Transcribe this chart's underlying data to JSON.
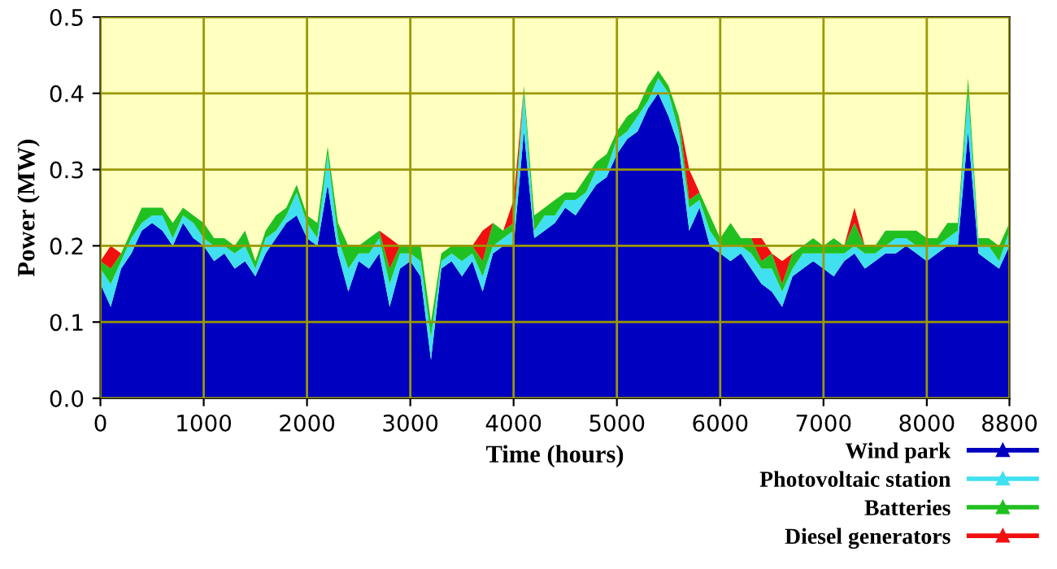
{
  "chart_data": {
    "type": "area",
    "stacked": true,
    "xlabel": "Time (hours)",
    "ylabel": "Power (MW)",
    "xlim": [
      0,
      8800
    ],
    "xticks": [
      0,
      1000,
      2000,
      3000,
      4000,
      5000,
      6000,
      7000,
      8000,
      8800
    ],
    "ylim": [
      0,
      0.5
    ],
    "yticks": [
      {
        "value": 0,
        "label": "0.0"
      },
      0.1,
      0.2,
      0.3,
      0.4,
      0.5
    ],
    "grid": true,
    "legend": "bottom right",
    "x": [
      0,
      100,
      200,
      300,
      400,
      500,
      600,
      700,
      800,
      900,
      1000,
      1100,
      1200,
      1300,
      1400,
      1500,
      1600,
      1700,
      1800,
      1900,
      2000,
      2100,
      2200,
      2300,
      2400,
      2500,
      2600,
      2700,
      2800,
      2900,
      3000,
      3100,
      3200,
      3300,
      3400,
      3500,
      3600,
      3700,
      3800,
      3900,
      4000,
      4100,
      4200,
      4300,
      4400,
      4500,
      4600,
      4700,
      4800,
      4900,
      5000,
      5100,
      5200,
      5300,
      5400,
      5500,
      5600,
      5700,
      5800,
      5900,
      6000,
      6100,
      6200,
      6300,
      6400,
      6500,
      6600,
      6700,
      6800,
      6900,
      7000,
      7100,
      7200,
      7300,
      7400,
      7500,
      7600,
      7700,
      7800,
      7900,
      8000,
      8100,
      8200,
      8300,
      8400,
      8500,
      8600,
      8700,
      8800
    ],
    "series": [
      {
        "name": "Wind park",
        "color": "#0000c0",
        "values": [
          0.15,
          0.12,
          0.17,
          0.19,
          0.22,
          0.23,
          0.22,
          0.2,
          0.23,
          0.21,
          0.2,
          0.18,
          0.19,
          0.17,
          0.18,
          0.16,
          0.19,
          0.21,
          0.23,
          0.24,
          0.21,
          0.2,
          0.28,
          0.19,
          0.14,
          0.18,
          0.17,
          0.19,
          0.12,
          0.17,
          0.18,
          0.16,
          0.05,
          0.17,
          0.18,
          0.16,
          0.18,
          0.14,
          0.19,
          0.2,
          0.2,
          0.35,
          0.21,
          0.22,
          0.23,
          0.25,
          0.24,
          0.26,
          0.28,
          0.29,
          0.32,
          0.34,
          0.35,
          0.38,
          0.4,
          0.37,
          0.33,
          0.22,
          0.25,
          0.2,
          0.19,
          0.18,
          0.19,
          0.17,
          0.15,
          0.14,
          0.12,
          0.16,
          0.17,
          0.18,
          0.17,
          0.16,
          0.18,
          0.19,
          0.17,
          0.18,
          0.19,
          0.19,
          0.2,
          0.19,
          0.18,
          0.19,
          0.2,
          0.2,
          0.35,
          0.19,
          0.18,
          0.17,
          0.2
        ]
      },
      {
        "name": "Photovoltaic station",
        "color": "#40e0f0",
        "values": [
          0.02,
          0.03,
          0.01,
          0.02,
          0.01,
          0.01,
          0.02,
          0.01,
          0.01,
          0.02,
          0.01,
          0.02,
          0.01,
          0.02,
          0.02,
          0.01,
          0.02,
          0.01,
          0.01,
          0.03,
          0.02,
          0.01,
          0.04,
          0.02,
          0.03,
          0.01,
          0.02,
          0.02,
          0.03,
          0.02,
          0.01,
          0.02,
          0.03,
          0.01,
          0.01,
          0.02,
          0.01,
          0.02,
          0.01,
          0.01,
          0.02,
          0.05,
          0.01,
          0.02,
          0.01,
          0.01,
          0.02,
          0.01,
          0.02,
          0.01,
          0.02,
          0.01,
          0.02,
          0.01,
          0.02,
          0.03,
          0.02,
          0.03,
          0.01,
          0.02,
          0.01,
          0.02,
          0.01,
          0.02,
          0.02,
          0.03,
          0.02,
          0.01,
          0.02,
          0.01,
          0.02,
          0.03,
          0.01,
          0.01,
          0.02,
          0.01,
          0.01,
          0.02,
          0.01,
          0.01,
          0.02,
          0.01,
          0.01,
          0.02,
          0.05,
          0.01,
          0.02,
          0.01,
          0.02
        ]
      },
      {
        "name": "Batteries",
        "color": "#20c020",
        "values": [
          0.01,
          0.02,
          0.01,
          0.01,
          0.02,
          0.01,
          0.01,
          0.02,
          0.01,
          0.01,
          0.02,
          0.01,
          0.01,
          0.01,
          0.02,
          0.01,
          0.01,
          0.02,
          0.01,
          0.01,
          0.01,
          0.02,
          0.01,
          0.02,
          0.03,
          0.01,
          0.02,
          0.01,
          0.02,
          0.01,
          0.01,
          0.02,
          0.02,
          0.01,
          0.01,
          0.02,
          0.01,
          0.02,
          0.03,
          0.01,
          0.01,
          0.01,
          0.02,
          0.01,
          0.02,
          0.01,
          0.01,
          0.02,
          0.01,
          0.02,
          0.01,
          0.02,
          0.01,
          0.02,
          0.01,
          0.01,
          0.02,
          0.01,
          0.01,
          0.02,
          0.01,
          0.03,
          0.01,
          0.02,
          0.01,
          0.02,
          0.01,
          0.02,
          0.01,
          0.02,
          0.01,
          0.02,
          0.01,
          0.03,
          0.01,
          0.01,
          0.02,
          0.01,
          0.01,
          0.02,
          0.01,
          0.01,
          0.02,
          0.01,
          0.02,
          0.01,
          0.01,
          0.02,
          0.01
        ]
      },
      {
        "name": "Diesel generators",
        "color": "#f01010",
        "values": [
          0,
          0.03,
          0,
          0,
          0,
          0,
          0,
          0,
          0,
          0,
          0,
          0,
          0,
          0,
          0,
          0,
          0,
          0,
          0,
          0,
          0,
          0,
          0,
          0,
          0,
          0,
          0,
          0,
          0.04,
          0,
          0,
          0,
          0,
          0,
          0,
          0,
          0,
          0.04,
          0,
          0,
          0.03,
          0,
          0,
          0,
          0,
          0,
          0,
          0,
          0,
          0,
          0,
          0,
          0,
          0,
          0,
          0,
          0,
          0.04,
          0,
          0,
          0,
          0,
          0,
          0,
          0.03,
          0,
          0.03,
          0,
          0,
          0,
          0,
          0,
          0,
          0.02,
          0,
          0,
          0,
          0,
          0,
          0,
          0,
          0,
          0,
          0,
          0,
          0,
          0,
          0,
          0
        ]
      }
    ]
  }
}
